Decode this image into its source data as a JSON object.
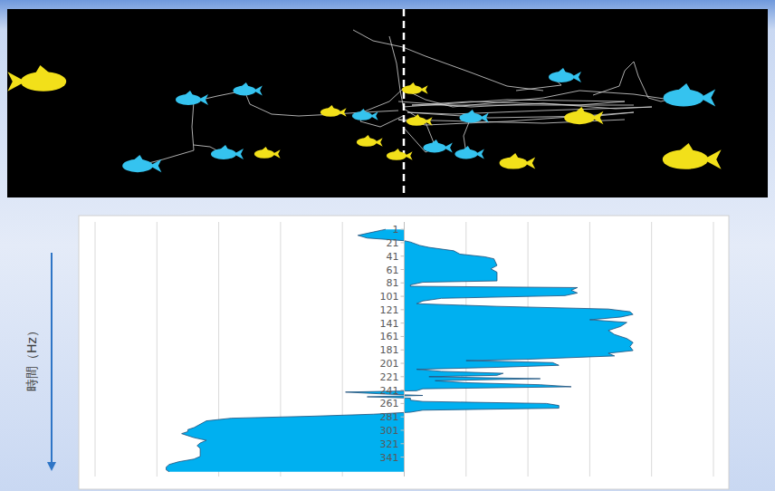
{
  "chart_data": {
    "type": "area",
    "orientation": "horizontal",
    "x_label": "時間（Hz）",
    "x": [
      1,
      5,
      10,
      14,
      18,
      20,
      25,
      28,
      33,
      38,
      42,
      45,
      55,
      60,
      65,
      78,
      80,
      84,
      86,
      88,
      92,
      96,
      100,
      104,
      108,
      112,
      116,
      120,
      124,
      128,
      132,
      136,
      140,
      146,
      152,
      158,
      164,
      170,
      176,
      182,
      186,
      190,
      195,
      197,
      200,
      204,
      207,
      210,
      213,
      216,
      219,
      221,
      224,
      227,
      230,
      233,
      236,
      239,
      242,
      244,
      247,
      249,
      251,
      253,
      256,
      258,
      261,
      264,
      268,
      271,
      274,
      277,
      280,
      283,
      287,
      292,
      297,
      300,
      303,
      306,
      309,
      312,
      316,
      320,
      324,
      328,
      332,
      336,
      340,
      344,
      348,
      352,
      356,
      360,
      363
    ],
    "values": [
      -0.3,
      -0.5,
      -0.75,
      -0.6,
      0,
      0.1,
      0.25,
      0.4,
      0.8,
      0.9,
      1.3,
      1.45,
      1.5,
      1.4,
      1.5,
      1.5,
      0.3,
      0.1,
      0.1,
      2.8,
      2.7,
      2.8,
      2.6,
      0.6,
      0.3,
      0.2,
      1.5,
      3.3,
      3.65,
      3.7,
      3.5,
      3.0,
      3.6,
      3.5,
      3.3,
      3.4,
      3.6,
      3.7,
      3.65,
      3.7,
      3.3,
      3.4,
      2.0,
      1.0,
      2.4,
      2.5,
      1.5,
      0.2,
      0.6,
      1.6,
      1.5,
      0.4,
      2.2,
      0.5,
      1.0,
      2.2,
      2.7,
      0.3,
      0.2,
      -0.95,
      -0.3,
      0.3,
      -0.6,
      0.1,
      0.1,
      0.3,
      2.3,
      2.5,
      2.5,
      0.3,
      0.1,
      -0.5,
      -1.5,
      -2.8,
      -3.2,
      -3.3,
      -3.4,
      -3.5,
      -3.5,
      -3.6,
      -3.5,
      -3.4,
      -3.2,
      -3.3,
      -3.35,
      -3.3,
      -3.3,
      -3.3,
      -3.3,
      -3.4,
      -3.65,
      -3.8,
      -3.85,
      -3.85,
      -3.8
    ],
    "color": "#00b0f0",
    "xlim": [
      -10,
      370
    ],
    "xticks": [
      1,
      21,
      41,
      61,
      81,
      101,
      121,
      141,
      161,
      181,
      201,
      221,
      241,
      261,
      281,
      301,
      321,
      341
    ],
    "ylim": [
      -5,
      5
    ],
    "yticks": [
      -5,
      -4,
      -3,
      -2,
      -1,
      0,
      1,
      2,
      3,
      4,
      5
    ],
    "grid": true,
    "tick_labels": "x"
  }
}
